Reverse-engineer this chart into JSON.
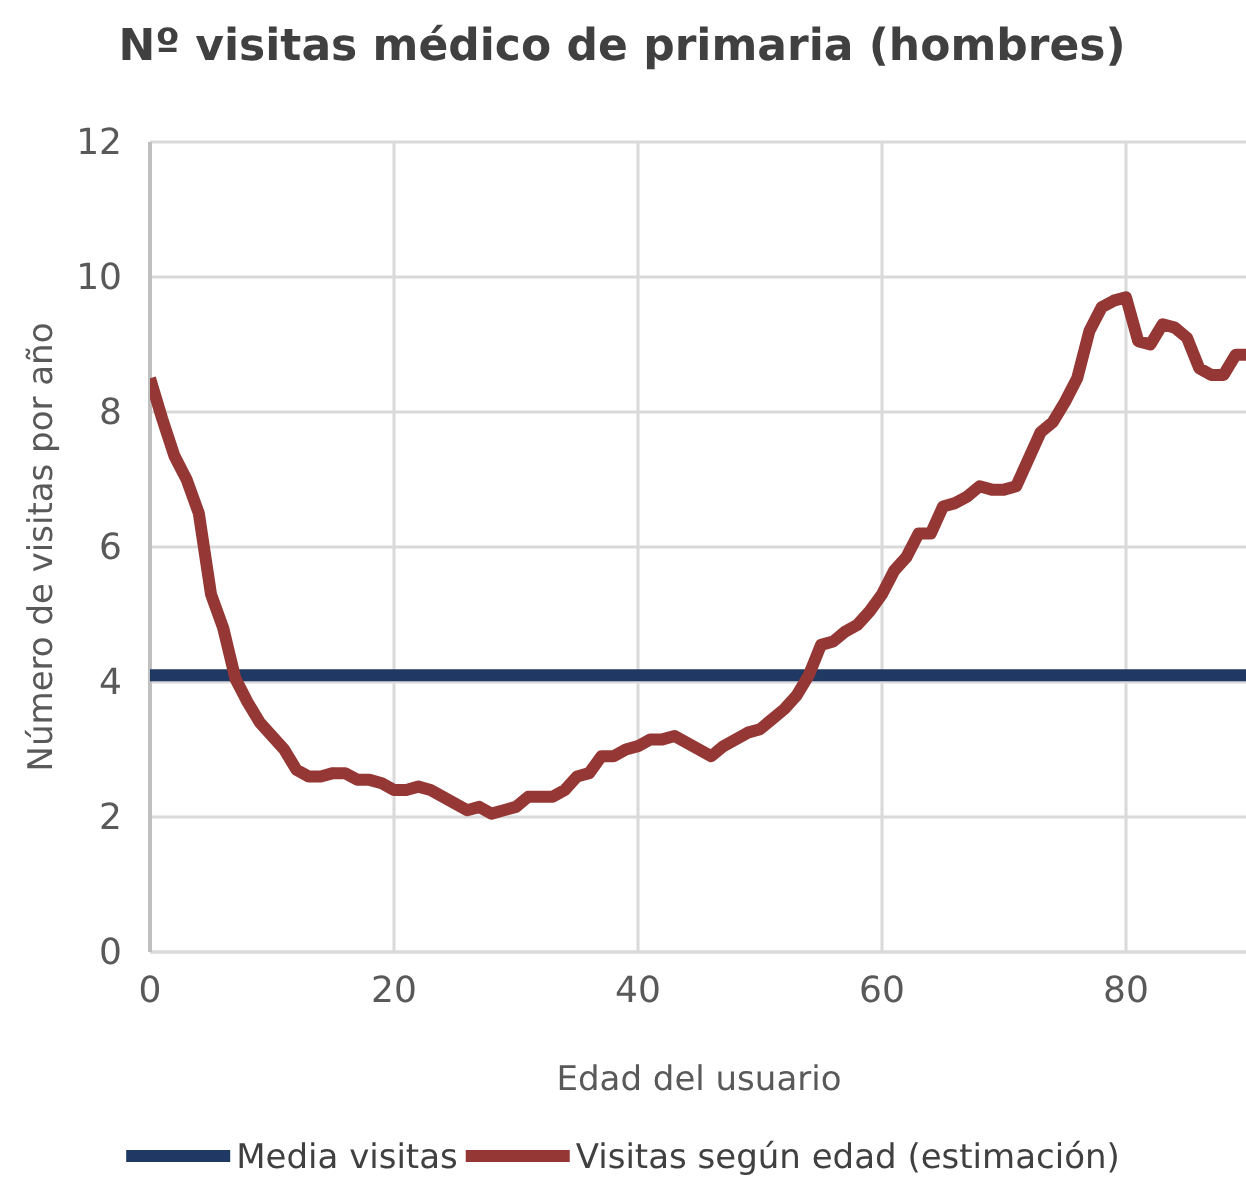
{
  "chart_data": {
    "type": "line",
    "title": "Nº visitas médico de primaria (hombres)",
    "xlabel": "Edad del usuario",
    "ylabel": "Número de visitas por año",
    "xlim": [
      0,
      90
    ],
    "xticks": [
      0,
      20,
      40,
      60,
      80
    ],
    "ylim": [
      0,
      12
    ],
    "yticks": [
      0,
      2,
      4,
      6,
      8,
      10,
      12
    ],
    "grid": true,
    "legend": "bottom",
    "marker": "none",
    "line_style": "solid",
    "series": [
      {
        "name": "Media visitas",
        "color": "#1f3864",
        "x": [
          0,
          90
        ],
        "values": [
          4.1,
          4.1
        ]
      },
      {
        "name": "Visitas según edad (estimación)",
        "color": "#953735",
        "x": [
          0,
          1,
          2,
          3,
          4,
          5,
          6,
          7,
          8,
          9,
          10,
          11,
          12,
          13,
          14,
          15,
          16,
          17,
          18,
          19,
          20,
          21,
          22,
          23,
          24,
          25,
          26,
          27,
          28,
          29,
          30,
          31,
          32,
          33,
          34,
          35,
          36,
          37,
          38,
          39,
          40,
          41,
          42,
          43,
          44,
          45,
          46,
          47,
          48,
          49,
          50,
          51,
          52,
          53,
          54,
          55,
          56,
          57,
          58,
          59,
          60,
          61,
          62,
          63,
          64,
          65,
          66,
          67,
          68,
          69,
          70,
          71,
          72,
          73,
          74,
          75,
          76,
          77,
          78,
          79,
          80,
          81,
          82,
          83,
          84,
          85,
          86,
          87,
          88,
          89,
          90
        ],
        "values": [
          8.5,
          7.9,
          7.35,
          7.0,
          6.5,
          5.3,
          4.8,
          4.05,
          3.7,
          3.4,
          3.2,
          3.0,
          2.7,
          2.6,
          2.6,
          2.65,
          2.65,
          2.55,
          2.55,
          2.5,
          2.4,
          2.4,
          2.45,
          2.4,
          2.3,
          2.2,
          2.1,
          2.15,
          2.05,
          2.1,
          2.15,
          2.3,
          2.3,
          2.3,
          2.4,
          2.6,
          2.65,
          2.9,
          2.9,
          3.0,
          3.05,
          3.15,
          3.15,
          3.2,
          3.1,
          3.0,
          2.9,
          3.05,
          3.15,
          3.25,
          3.3,
          3.45,
          3.6,
          3.8,
          4.1,
          4.55,
          4.6,
          4.75,
          4.85,
          5.05,
          5.3,
          5.65,
          5.85,
          6.2,
          6.2,
          6.6,
          6.65,
          6.75,
          6.9,
          6.85,
          6.85,
          6.9,
          7.3,
          7.7,
          7.85,
          8.15,
          8.5,
          9.2,
          9.55,
          9.65,
          9.7,
          9.05,
          9.0,
          9.3,
          9.25,
          9.1,
          8.65,
          8.55,
          8.55,
          8.85,
          8.85
        ]
      }
    ]
  }
}
